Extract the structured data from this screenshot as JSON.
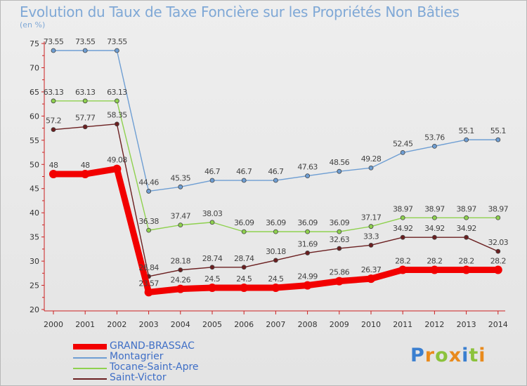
{
  "chart_data": {
    "type": "line",
    "title": "Evolution du Taux de Taxe Foncière sur les Propriétés Non Bâties",
    "subtitle": "(en %)",
    "x": [
      "2000",
      "2001",
      "2002",
      "2003",
      "2004",
      "2005",
      "2006",
      "2007",
      "2008",
      "2009",
      "2010",
      "2011",
      "2012",
      "2013",
      "2014"
    ],
    "ylim": [
      20,
      75
    ],
    "yticks": [
      20,
      25,
      30,
      35,
      40,
      45,
      50,
      55,
      60,
      65,
      70,
      75
    ],
    "grid": false,
    "legend_position": "bottom-left",
    "series": [
      {
        "name": "Montagrier",
        "color": "#6e9ed3",
        "values": [
          73.55,
          73.55,
          73.55,
          44.46,
          45.35,
          46.7,
          46.7,
          46.7,
          47.63,
          48.56,
          49.28,
          52.45,
          53.76,
          55.1,
          55.1
        ],
        "labels": [
          "73.55",
          "73.55",
          "73.55",
          "44.46",
          "45.35",
          "46.7",
          "46.7",
          "46.7",
          "47.63",
          "48.56",
          "49.28",
          "52.45",
          "53.76",
          "55.1",
          "55.1"
        ]
      },
      {
        "name": "Tocane-Saint-Apre",
        "color": "#8ed14e",
        "values": [
          63.13,
          63.13,
          63.13,
          36.38,
          37.47,
          38.03,
          36.09,
          36.09,
          36.09,
          36.09,
          37.17,
          38.97,
          38.97,
          38.97,
          38.97
        ],
        "labels": [
          "63.13",
          "63.13",
          "63.13",
          "36.38",
          "37.47",
          "38.03",
          "36.09",
          "36.09",
          "36.09",
          "36.09",
          "37.17",
          "38.97",
          "38.97",
          "38.97",
          "38.97"
        ]
      },
      {
        "name": "Saint-Victor",
        "color": "#6b1f20",
        "values": [
          57.2,
          57.77,
          58.35,
          26.84,
          28.18,
          28.74,
          28.74,
          30.18,
          31.69,
          32.63,
          33.3,
          34.92,
          34.92,
          34.92,
          32.03
        ],
        "labels": [
          "57.2",
          "57.77",
          "58.35",
          "26.84",
          "28.18",
          "28.74",
          "28.74",
          "30.18",
          "31.69",
          "32.63",
          "33.3",
          "34.92",
          "34.92",
          "34.92",
          "32.03"
        ]
      },
      {
        "name": "GRAND-BRASSAC",
        "color": "#f20000",
        "values": [
          48,
          48,
          49.08,
          23.57,
          24.26,
          24.5,
          24.5,
          24.5,
          24.99,
          25.86,
          26.37,
          28.2,
          28.2,
          28.2,
          28.2
        ],
        "labels": [
          "48",
          "48",
          "49.08",
          "23.57",
          "24.26",
          "24.5",
          "24.5",
          "24.5",
          "24.99",
          "25.86",
          "26.37",
          "28.2",
          "28.2",
          "28.2",
          "28.2"
        ]
      }
    ],
    "legend": [
      "GRAND-BRASSAC",
      "Montagrier",
      "Tocane-Saint-Apre",
      "Saint-Victor"
    ]
  },
  "logo": {
    "text": "Proxiti",
    "colors": [
      "#3a7fd0",
      "#e98a1c",
      "#8bc23c",
      "#e98a1c",
      "#3a7fd0",
      "#8bc23c",
      "#e98a1c"
    ]
  }
}
